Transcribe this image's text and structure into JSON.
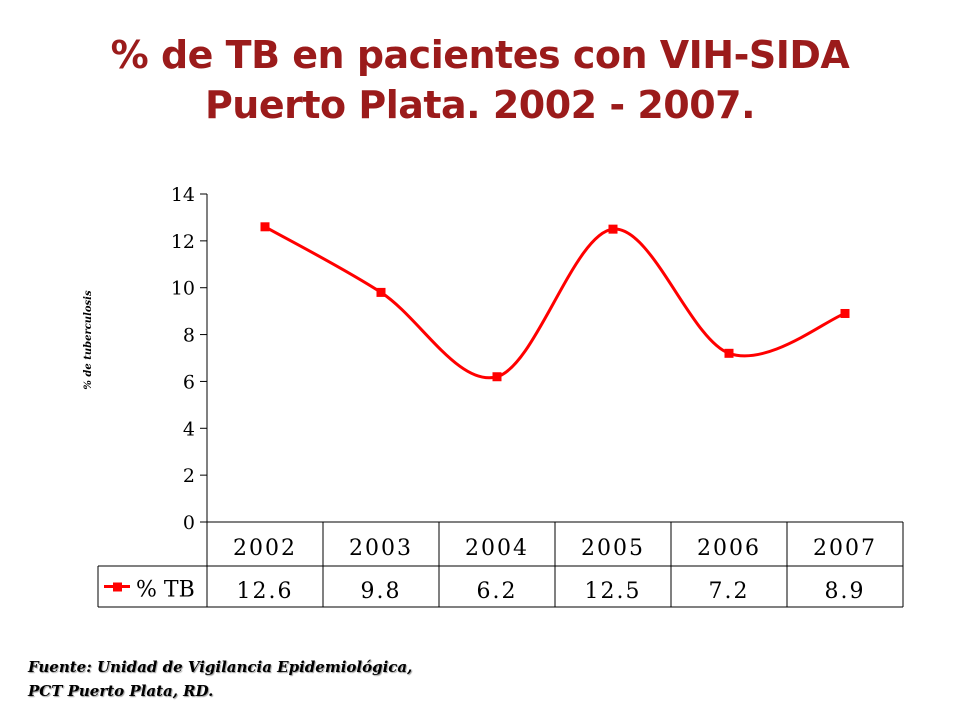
{
  "title": {
    "line1": "% de TB en pacientes con VIH-SIDA",
    "line2": "Puerto Plata. 2002 - 2007."
  },
  "chart_data": {
    "type": "line",
    "ylabel": "% de tuberculosis",
    "ylim": [
      0,
      14
    ],
    "yticks": [
      "0",
      "2",
      "4",
      "6",
      "8",
      "10",
      "12",
      "14"
    ],
    "categories": [
      "2002",
      "2003",
      "2004",
      "2005",
      "2006",
      "2007"
    ],
    "series": [
      {
        "name": "% TB",
        "values": [
          12.6,
          9.8,
          6.2,
          12.5,
          7.2,
          8.9
        ],
        "labels": [
          "12.6",
          "9.8",
          "6.2",
          "12.5",
          "7.2",
          "8.9"
        ]
      }
    ],
    "data_table": true,
    "smooth": true,
    "color": "#ff0000",
    "grid": false
  },
  "source": {
    "line1": "Fuente: Unidad de Vigilancia Epidemiológica,",
    "line2": "PCT Puerto Plata, RD."
  }
}
